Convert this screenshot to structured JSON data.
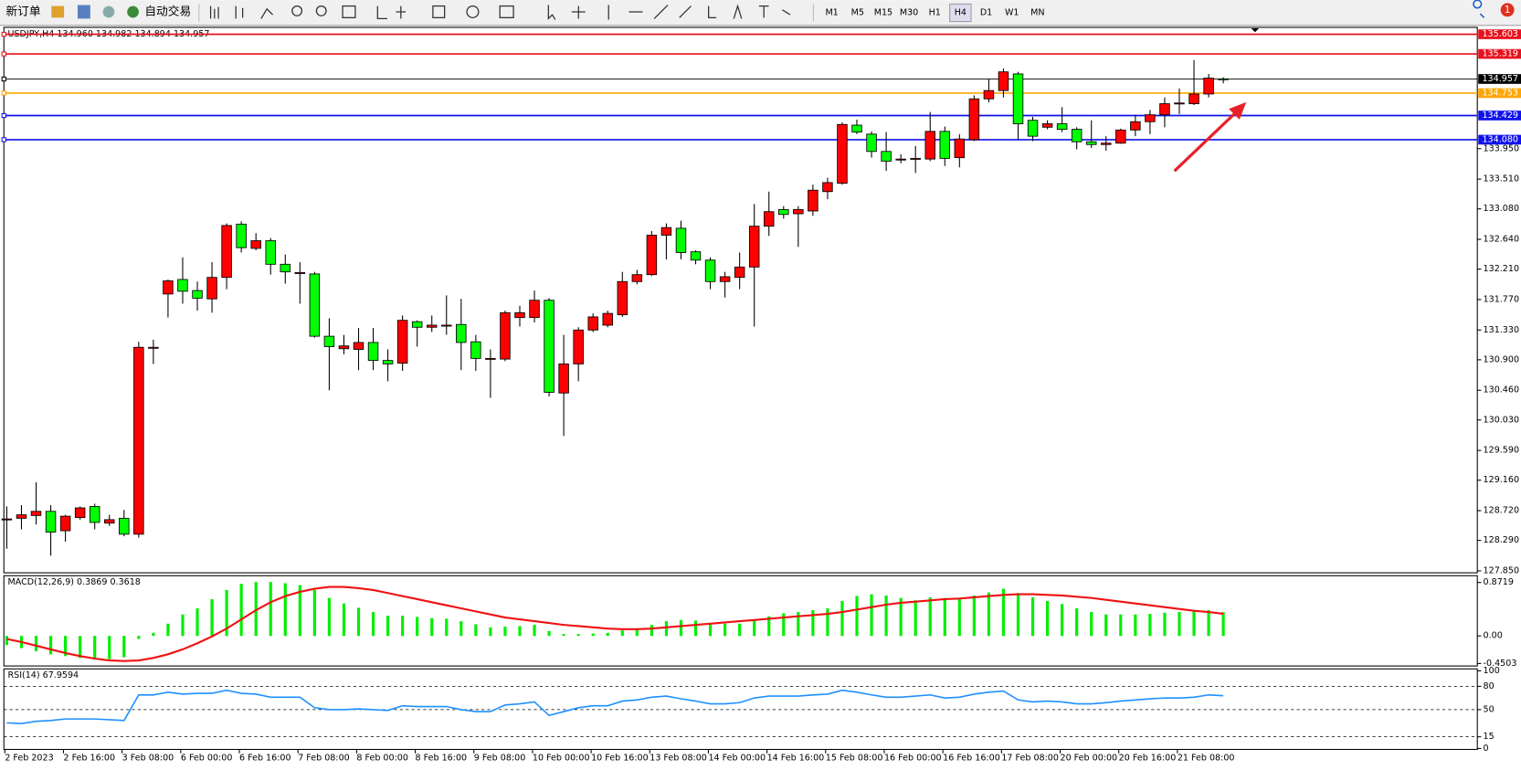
{
  "toolbar": {
    "new_order": "新订单",
    "auto_trading": "自动交易",
    "timeframes": [
      "M1",
      "M5",
      "M15",
      "M30",
      "H1",
      "H4",
      "D1",
      "W1",
      "MN"
    ],
    "active_timeframe": 5,
    "notifications": 1
  },
  "chart_data": [
    {
      "type": "candlestick",
      "title": "USDJPY,H4  134.960 134.982 134.894 134.957",
      "up_color": "#ff0000",
      "down_color": "#00ff00",
      "categories": [
        "2 Feb 2023",
        null,
        null,
        null,
        "2 Feb 16:00",
        null,
        null,
        null,
        "3 Feb 08:00",
        null,
        null,
        null,
        "6 Feb 00:00",
        null,
        null,
        null,
        "6 Feb 16:00",
        null,
        null,
        null,
        "7 Feb 08:00",
        null,
        null,
        null,
        "8 Feb 00:00",
        null,
        null,
        null,
        "8 Feb 16:00",
        null,
        null,
        null,
        "9 Feb 08:00",
        null,
        null,
        null,
        "10 Feb 00:00",
        null,
        null,
        null,
        "10 Feb 16:00",
        null,
        null,
        null,
        "13 Feb 08:00",
        null,
        null,
        null,
        "14 Feb 00:00",
        null,
        null,
        null,
        "14 Feb 16:00",
        null,
        null,
        null,
        "15 Feb 08:00",
        null,
        null,
        null,
        "16 Feb 00:00",
        null,
        null,
        null,
        "16 Feb 16:00",
        null,
        null,
        null,
        "17 Feb 08:00",
        null,
        null,
        null,
        "20 Feb 00:00",
        null,
        null,
        null,
        "20 Feb 16:00",
        null,
        null,
        null,
        "21 Feb 08:00",
        null,
        null,
        null
      ],
      "open": [
        128.59,
        128.61,
        128.65,
        128.71,
        128.43,
        128.62,
        128.78,
        128.54,
        128.61,
        128.38,
        131.08,
        131.85,
        132.06,
        131.9,
        131.78,
        132.09,
        132.86,
        132.51,
        132.62,
        132.28,
        132.16,
        132.14,
        131.24,
        131.06,
        131.05,
        131.15,
        130.89,
        130.85,
        131.45,
        131.37,
        131.4,
        131.41,
        131.16,
        130.92,
        130.91,
        131.51,
        131.51,
        131.76,
        130.42,
        130.84,
        131.33,
        131.4,
        131.55,
        132.03,
        132.13,
        132.7,
        132.8,
        132.46,
        132.34,
        132.03,
        132.09,
        132.24,
        132.83,
        133.07,
        133.01,
        133.05,
        133.33,
        133.45,
        134.29,
        134.16,
        133.91,
        133.8,
        133.81,
        133.8,
        134.2,
        133.82,
        134.08,
        134.67,
        134.79,
        135.03,
        134.36,
        134.26,
        134.31,
        134.23,
        134.05,
        134.01,
        134.03,
        134.22,
        134.34,
        134.44,
        134.61,
        134.6,
        134.74,
        134.96
      ],
      "high": [
        128.78,
        128.8,
        129.13,
        128.8,
        128.66,
        128.78,
        128.82,
        128.66,
        128.73,
        131.16,
        131.19,
        132.06,
        132.38,
        132.03,
        132.31,
        132.87,
        132.9,
        132.73,
        132.66,
        132.42,
        132.31,
        132.17,
        131.5,
        131.26,
        131.36,
        131.36,
        131.05,
        131.54,
        131.47,
        131.54,
        131.83,
        131.78,
        131.26,
        131.05,
        131.61,
        131.68,
        131.9,
        131.79,
        131.26,
        131.37,
        131.57,
        131.61,
        132.17,
        132.2,
        132.76,
        132.87,
        132.91,
        132.48,
        132.38,
        132.17,
        132.45,
        133.15,
        133.33,
        133.12,
        133.12,
        133.43,
        133.53,
        134.33,
        134.37,
        134.2,
        134.19,
        133.87,
        133.99,
        134.48,
        134.27,
        134.16,
        134.72,
        134.95,
        135.11,
        135.06,
        134.41,
        134.36,
        134.55,
        134.26,
        134.36,
        134.13,
        134.24,
        134.44,
        134.51,
        134.69,
        134.82,
        135.23,
        135.03,
        134.982
      ],
      "low": [
        128.17,
        128.45,
        128.52,
        128.07,
        128.27,
        128.59,
        128.45,
        128.5,
        128.35,
        128.33,
        130.84,
        131.51,
        131.71,
        131.61,
        131.58,
        131.92,
        132.45,
        132.48,
        132.13,
        132.0,
        131.71,
        131.22,
        130.46,
        130.98,
        130.75,
        130.75,
        130.59,
        130.74,
        131.09,
        131.3,
        131.26,
        130.75,
        130.74,
        130.35,
        130.88,
        131.38,
        131.44,
        130.37,
        129.8,
        130.59,
        131.3,
        131.37,
        131.52,
        131.99,
        132.11,
        132.35,
        132.35,
        132.28,
        131.92,
        131.8,
        131.92,
        131.38,
        132.69,
        132.94,
        132.53,
        132.98,
        133.22,
        133.43,
        134.16,
        133.82,
        133.63,
        133.74,
        133.6,
        133.77,
        133.7,
        133.68,
        134.06,
        134.62,
        134.69,
        134.08,
        134.06,
        134.23,
        134.19,
        133.94,
        133.96,
        133.92,
        134.02,
        134.13,
        134.16,
        134.26,
        134.45,
        134.58,
        134.69,
        134.894
      ],
      "close": [
        128.6,
        128.66,
        128.71,
        128.41,
        128.64,
        128.76,
        128.55,
        128.59,
        128.38,
        131.08,
        131.08,
        132.04,
        131.89,
        131.79,
        132.09,
        132.84,
        132.52,
        132.62,
        132.28,
        132.17,
        132.16,
        131.24,
        131.09,
        131.1,
        131.15,
        130.89,
        130.84,
        131.47,
        131.37,
        131.4,
        131.4,
        131.15,
        130.92,
        130.92,
        131.58,
        131.58,
        131.76,
        130.43,
        130.84,
        131.33,
        131.52,
        131.57,
        132.03,
        132.13,
        132.7,
        132.81,
        132.45,
        132.34,
        132.03,
        132.1,
        132.24,
        132.83,
        133.04,
        133.0,
        133.07,
        133.35,
        133.46,
        134.3,
        134.19,
        133.91,
        133.77,
        133.8,
        133.81,
        134.2,
        133.81,
        134.09,
        134.67,
        134.79,
        135.06,
        134.31,
        134.13,
        134.31,
        134.23,
        134.05,
        134.01,
        134.03,
        134.22,
        134.34,
        134.44,
        134.6,
        134.61,
        134.74,
        134.97,
        134.957
      ],
      "hlines": [
        {
          "value": 135.603,
          "color": "#e8101c"
        },
        {
          "value": 135.319,
          "color": "#e8101c"
        },
        {
          "value": 134.957,
          "color": "#000000"
        },
        {
          "value": 134.753,
          "color": "#ffa500"
        },
        {
          "value": 134.429,
          "color": "#1010ee"
        },
        {
          "value": 134.08,
          "label": "134.080",
          "color": "#1010ee"
        }
      ],
      "ylim": [
        127.822,
        135.703
      ],
      "yticks": [
        {
          "value": 133.95,
          "label": "133.950"
        },
        {
          "value": 133.51,
          "label": "133.510"
        },
        {
          "value": 133.08,
          "label": "133.080"
        },
        {
          "value": 132.64,
          "label": "132.640"
        },
        {
          "value": 132.21,
          "label": "132.210"
        },
        {
          "value": 131.77,
          "label": "131.770"
        },
        {
          "value": 131.33,
          "label": "131.330"
        },
        {
          "value": 130.9,
          "label": "130.900"
        },
        {
          "value": 130.46,
          "label": "130.460"
        },
        {
          "value": 130.03,
          "label": "130.030"
        },
        {
          "value": 129.59,
          "label": "129.590"
        },
        {
          "value": 129.16,
          "label": "129.160"
        },
        {
          "value": 128.72,
          "label": "128.720"
        },
        {
          "value": 128.29,
          "label": "128.290"
        },
        {
          "value": 127.85,
          "label": "127.850"
        }
      ]
    },
    {
      "type": "combo",
      "title": "MACD(12,26,9) 0.3869 0.3618",
      "ylim": [
        -0.491,
        0.983
      ],
      "yticks": [
        0.8719,
        {
          "value": 0,
          "label": "0.00"
        },
        -0.4503
      ],
      "series": [
        {
          "type": "bar",
          "color": "#00ee00",
          "values": [
            -0.15,
            -0.2,
            -0.25,
            -0.3,
            -0.33,
            -0.36,
            -0.38,
            -0.38,
            -0.35,
            -0.05,
            0.05,
            0.2,
            0.35,
            0.45,
            0.6,
            0.75,
            0.85,
            0.88,
            0.88,
            0.86,
            0.83,
            0.75,
            0.62,
            0.53,
            0.46,
            0.39,
            0.33,
            0.33,
            0.31,
            0.29,
            0.28,
            0.24,
            0.19,
            0.14,
            0.15,
            0.16,
            0.18,
            0.08,
            0.03,
            0.03,
            0.04,
            0.05,
            0.09,
            0.12,
            0.18,
            0.24,
            0.26,
            0.25,
            0.21,
            0.2,
            0.2,
            0.25,
            0.32,
            0.37,
            0.39,
            0.42,
            0.45,
            0.57,
            0.65,
            0.68,
            0.66,
            0.62,
            0.58,
            0.63,
            0.62,
            0.6,
            0.66,
            0.71,
            0.77,
            0.7,
            0.63,
            0.57,
            0.52,
            0.45,
            0.39,
            0.35,
            0.35,
            0.35,
            0.36,
            0.38,
            0.39,
            0.4,
            0.42,
            0.3869
          ]
        },
        {
          "type": "line",
          "color": "#ee1111",
          "values": [
            -0.05,
            -0.1,
            -0.16,
            -0.22,
            -0.28,
            -0.33,
            -0.37,
            -0.4,
            -0.41,
            -0.4,
            -0.36,
            -0.3,
            -0.22,
            -0.12,
            -0.01,
            0.12,
            0.27,
            0.42,
            0.55,
            0.65,
            0.72,
            0.77,
            0.8,
            0.8,
            0.78,
            0.75,
            0.7,
            0.65,
            0.6,
            0.55,
            0.5,
            0.45,
            0.4,
            0.35,
            0.3,
            0.27,
            0.24,
            0.21,
            0.18,
            0.16,
            0.14,
            0.12,
            0.11,
            0.11,
            0.12,
            0.14,
            0.16,
            0.18,
            0.2,
            0.22,
            0.24,
            0.26,
            0.28,
            0.3,
            0.32,
            0.34,
            0.36,
            0.39,
            0.43,
            0.47,
            0.51,
            0.54,
            0.56,
            0.58,
            0.6,
            0.61,
            0.63,
            0.65,
            0.67,
            0.68,
            0.68,
            0.67,
            0.66,
            0.64,
            0.62,
            0.59,
            0.56,
            0.53,
            0.5,
            0.47,
            0.44,
            0.41,
            0.39,
            0.3618
          ]
        }
      ]
    },
    {
      "type": "line",
      "title": "RSI(14) 67.9594",
      "color": "#1e90ff",
      "ylim": [
        -1.25,
        102.5
      ],
      "yticks": [
        100,
        80,
        50,
        15,
        0
      ],
      "levels": [
        80,
        50,
        15
      ],
      "values": [
        33,
        32,
        35,
        36,
        38,
        38,
        38,
        37,
        36,
        69,
        69,
        72.5,
        70,
        71,
        71,
        75,
        71,
        70,
        66,
        66,
        66,
        52.5,
        50,
        50,
        51,
        50,
        49,
        55,
        54,
        54,
        54,
        50,
        47.5,
        47.5,
        56,
        57.5,
        60,
        42.5,
        47.5,
        52.5,
        55,
        55,
        61,
        62.5,
        66,
        67.5,
        64,
        61,
        57.5,
        57.5,
        59,
        65,
        67.5,
        67.5,
        67.5,
        69,
        70,
        75,
        72.5,
        69,
        66,
        66,
        67.5,
        69,
        65,
        66,
        70,
        72.5,
        74,
        62.5,
        60,
        61,
        60,
        57.5,
        57.5,
        59,
        61,
        62.5,
        64,
        65,
        65,
        66,
        69,
        67.9594
      ]
    }
  ]
}
